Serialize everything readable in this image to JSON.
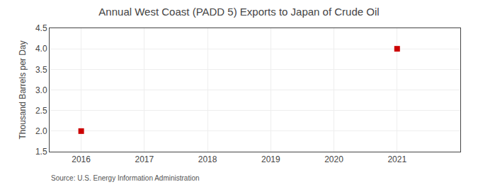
{
  "chart_data": {
    "type": "scatter",
    "title": "Annual West Coast (PADD 5) Exports to Japan of Crude Oil",
    "y_label": "Thousand Barrels per Day",
    "annotations": [
      "Source: U.S. Energy Information Administration"
    ],
    "x": [
      2016,
      2021
    ],
    "values": [
      2.0,
      4.0
    ],
    "color": "#cc0000",
    "marker": "square",
    "xlim": [
      2015.5,
      2022.0
    ],
    "ylim": [
      1.5,
      4.5
    ],
    "xticks": [
      2016,
      2017,
      2018,
      2019,
      2020,
      2021
    ],
    "yticks": [
      1.5,
      {
        "value": 2.0,
        "label": "2.0"
      },
      2.5,
      {
        "value": 3.0,
        "label": "3.0"
      },
      3.5,
      {
        "value": 4.0,
        "label": "4.0"
      },
      4.5
    ],
    "grid": true
  }
}
